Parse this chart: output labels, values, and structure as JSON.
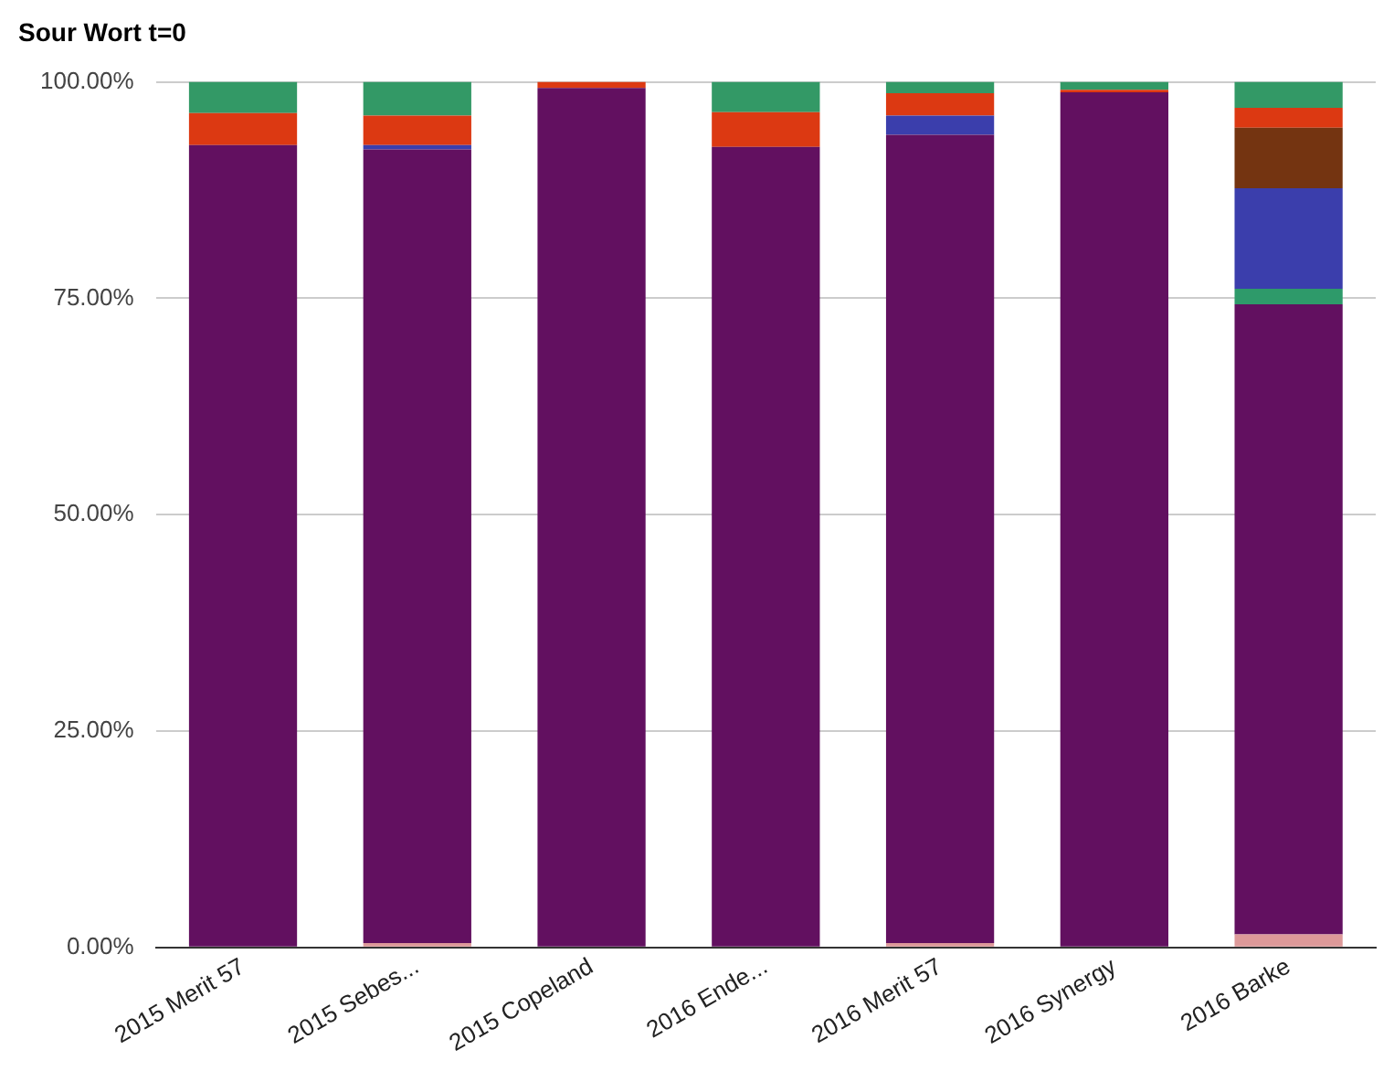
{
  "chart_data": {
    "type": "bar",
    "title": "Sour Wort t=0",
    "categories": [
      "2015 Merit 57",
      "2015 Sebes...",
      "2015 Copeland",
      "2016 Ende...",
      "2016 Merit 57",
      "2016 Synergy",
      "2016 Barke"
    ],
    "stacked": true,
    "series": [
      {
        "color": "#dd9999",
        "values": [
          0,
          0.5,
          0,
          0,
          0.5,
          0,
          1.5
        ]
      },
      {
        "color": "#621060",
        "values": [
          92.7,
          91.7,
          99.3,
          92.5,
          93.4,
          98.8,
          72.8
        ]
      },
      {
        "color": "#2e9a6a",
        "values": [
          0,
          0,
          0,
          0,
          0,
          0,
          1.8
        ]
      },
      {
        "color": "#3b3eac",
        "values": [
          0,
          0.5,
          0,
          0,
          2.2,
          0,
          11.6
        ]
      },
      {
        "color": "#743411",
        "values": [
          0,
          0,
          0,
          0,
          0,
          0,
          7.0
        ]
      },
      {
        "color": "#dc3912",
        "values": [
          3.7,
          3.4,
          0.7,
          4.0,
          2.6,
          0.3,
          2.3
        ]
      },
      {
        "color": "#339966",
        "values": [
          3.6,
          3.9,
          0,
          3.5,
          1.3,
          0.9,
          3.0
        ]
      }
    ],
    "ylim": [
      0,
      100
    ],
    "yticks": [
      {
        "value": 0,
        "label": "0.00%"
      },
      {
        "value": 25,
        "label": "25.00%"
      },
      {
        "value": 50,
        "label": "50.00%"
      },
      {
        "value": 75,
        "label": "75.00%"
      },
      {
        "value": 100,
        "label": "100.00%"
      }
    ],
    "grid": "y",
    "legend": false
  }
}
